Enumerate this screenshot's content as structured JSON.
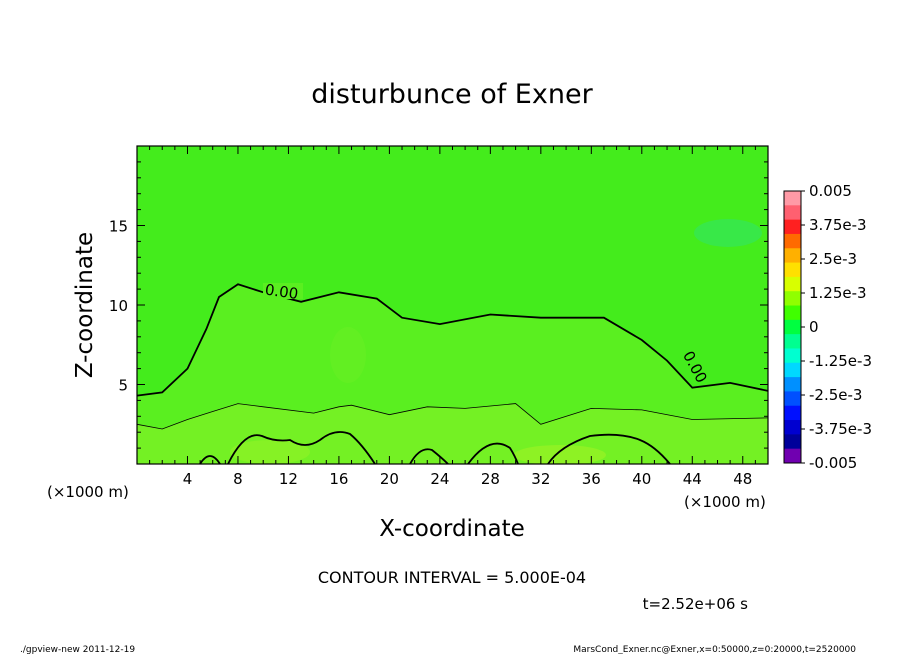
{
  "chart_data": {
    "type": "heatmap",
    "title": "disturbunce of Exner",
    "xlabel": "X-coordinate",
    "ylabel": "Z-coordinate",
    "x_unit_left": "(×1000 m)",
    "x_unit_right": "(×1000 m)",
    "xlim": [
      0,
      50
    ],
    "ylim": [
      0,
      20
    ],
    "x_ticks": [
      "4",
      "8",
      "12",
      "16",
      "20",
      "24",
      "28",
      "32",
      "36",
      "40",
      "44",
      "48"
    ],
    "y_ticks": [
      "5",
      "10",
      "15"
    ],
    "contour_label": "0.00",
    "contour_interval_text": "CONTOUR INTERVAL = 5.000E-04",
    "time_text": "t=2.52e+06 s",
    "colorbar": {
      "labels": [
        "0.005",
        "3.75e-3",
        "2.5e-3",
        "1.25e-3",
        "0",
        "-1.25e-3",
        "-2.5e-3",
        "-3.75e-3",
        "-0.005"
      ],
      "colors": [
        "#ff9aa6",
        "#ff6070",
        "#ff2020",
        "#ff6a00",
        "#ffb000",
        "#ffe000",
        "#d8ff00",
        "#90ff00",
        "#40ff00",
        "#00ff40",
        "#00ff90",
        "#00ffd0",
        "#00d8ff",
        "#0090ff",
        "#0050ff",
        "#0010ff",
        "#0000d0",
        "#00009a",
        "#7000b0"
      ]
    },
    "contour_zero_line": [
      {
        "x": 0,
        "z": 4.3
      },
      {
        "x": 2,
        "z": 4.5
      },
      {
        "x": 4,
        "z": 6.0
      },
      {
        "x": 5.5,
        "z": 8.5
      },
      {
        "x": 6.5,
        "z": 10.5
      },
      {
        "x": 8,
        "z": 11.3
      },
      {
        "x": 10,
        "z": 10.8
      },
      {
        "x": 13,
        "z": 10.2
      },
      {
        "x": 16,
        "z": 10.8
      },
      {
        "x": 19,
        "z": 10.4
      },
      {
        "x": 21,
        "z": 9.2
      },
      {
        "x": 24,
        "z": 8.8
      },
      {
        "x": 28,
        "z": 9.4
      },
      {
        "x": 32,
        "z": 9.2
      },
      {
        "x": 37,
        "z": 9.2
      },
      {
        "x": 40,
        "z": 7.8
      },
      {
        "x": 42,
        "z": 6.5
      },
      {
        "x": 44,
        "z": 4.8
      },
      {
        "x": 47,
        "z": 5.1
      },
      {
        "x": 50,
        "z": 4.6
      }
    ],
    "contour_lower_line": [
      {
        "x": 0,
        "z": 2.5
      },
      {
        "x": 2,
        "z": 2.2
      },
      {
        "x": 4,
        "z": 2.8
      },
      {
        "x": 6,
        "z": 3.3
      },
      {
        "x": 8,
        "z": 3.8
      },
      {
        "x": 10,
        "z": 3.6
      },
      {
        "x": 14,
        "z": 3.2
      },
      {
        "x": 16,
        "z": 3.6
      },
      {
        "x": 17,
        "z": 3.7
      },
      {
        "x": 20,
        "z": 3.1
      },
      {
        "x": 23,
        "z": 3.6
      },
      {
        "x": 26,
        "z": 3.5
      },
      {
        "x": 30,
        "z": 3.8
      },
      {
        "x": 32,
        "z": 2.5
      },
      {
        "x": 36,
        "z": 3.5
      },
      {
        "x": 40,
        "z": 3.4
      },
      {
        "x": 44,
        "z": 2.8
      },
      {
        "x": 50,
        "z": 2.9
      }
    ]
  },
  "footer": {
    "left": "./gpview-new   2011-12-19",
    "right": "MarsCond_Exner.nc@Exner,x=0:50000,z=0:20000,t=2520000"
  }
}
